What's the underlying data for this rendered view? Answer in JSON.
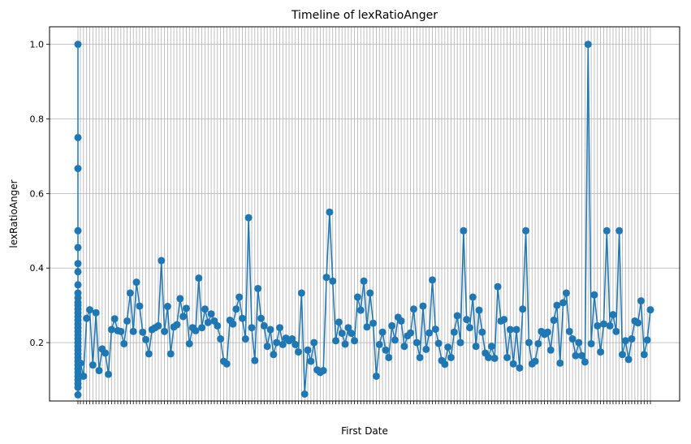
{
  "chart_data": {
    "type": "line",
    "title": "Timeline of lexRatioAnger",
    "xlabel": "First Date",
    "ylabel": "lexRatioAnger",
    "ylim": [
      0.0435,
      1.047
    ],
    "yticks": [
      0.2,
      0.4,
      0.6,
      0.8,
      1.0
    ],
    "ytick_labels": [
      "0.2",
      "0.4",
      "0.6",
      "0.8",
      "1.0"
    ],
    "x_tick_labels_note": "dense, overlapping date labels (illegible)",
    "grid": true,
    "color": "#1f77b4",
    "marker": "circle",
    "cluster_values": [
      1.0,
      0.75,
      0.667,
      0.5,
      0.455,
      0.412,
      0.39,
      0.355,
      0.333,
      0.32,
      0.308,
      0.3,
      0.29,
      0.28,
      0.27,
      0.26,
      0.25,
      0.24,
      0.23,
      0.22,
      0.21,
      0.2,
      0.19,
      0.18,
      0.17,
      0.16,
      0.15,
      0.14,
      0.13,
      0.12,
      0.11,
      0.1,
      0.09,
      0.08,
      0.06
    ],
    "series_values": [
      0.145,
      0.11,
      0.265,
      0.288,
      0.14,
      0.28,
      0.125,
      0.183,
      0.172,
      0.115,
      0.235,
      0.264,
      0.232,
      0.23,
      0.197,
      0.258,
      0.333,
      0.23,
      0.362,
      0.298,
      0.228,
      0.208,
      0.17,
      0.235,
      0.24,
      0.245,
      0.42,
      0.23,
      0.297,
      0.17,
      0.242,
      0.248,
      0.318,
      0.27,
      0.292,
      0.197,
      0.24,
      0.232,
      0.373,
      0.24,
      0.29,
      0.254,
      0.277,
      0.258,
      0.245,
      0.21,
      0.15,
      0.143,
      0.26,
      0.25,
      0.29,
      0.322,
      0.265,
      0.21,
      0.535,
      0.24,
      0.152,
      0.345,
      0.265,
      0.245,
      0.19,
      0.235,
      0.168,
      0.2,
      0.24,
      0.195,
      0.212,
      0.205,
      0.21,
      0.195,
      0.175,
      0.333,
      0.062,
      0.18,
      0.15,
      0.2,
      0.127,
      0.12,
      0.125,
      0.375,
      0.55,
      0.365,
      0.205,
      0.255,
      0.225,
      0.196,
      0.24,
      0.225,
      0.205,
      0.322,
      0.287,
      0.365,
      0.242,
      0.333,
      0.252,
      0.11,
      0.195,
      0.228,
      0.18,
      0.16,
      0.245,
      0.207,
      0.268,
      0.258,
      0.19,
      0.218,
      0.226,
      0.29,
      0.2,
      0.16,
      0.298,
      0.182,
      0.226,
      0.368,
      0.236,
      0.198,
      0.152,
      0.142,
      0.188,
      0.16,
      0.228,
      0.272,
      0.2,
      0.5,
      0.262,
      0.24,
      0.322,
      0.19,
      0.287,
      0.228,
      0.172,
      0.16,
      0.19,
      0.158,
      0.35,
      0.258,
      0.262,
      0.16,
      0.235,
      0.143,
      0.235,
      0.132,
      0.29,
      0.5,
      0.2,
      0.143,
      0.15,
      0.197,
      0.23,
      0.222,
      0.228,
      0.18,
      0.26,
      0.3,
      0.145,
      0.307,
      0.333,
      0.23,
      0.21,
      0.165,
      0.2,
      0.165,
      0.148,
      1.0,
      0.197,
      0.328,
      0.245,
      0.175,
      0.25,
      0.5,
      0.245,
      0.275,
      0.23,
      0.5,
      0.168,
      0.205,
      0.155,
      0.21,
      0.258,
      0.253,
      0.312,
      0.168,
      0.207,
      0.288
    ]
  }
}
